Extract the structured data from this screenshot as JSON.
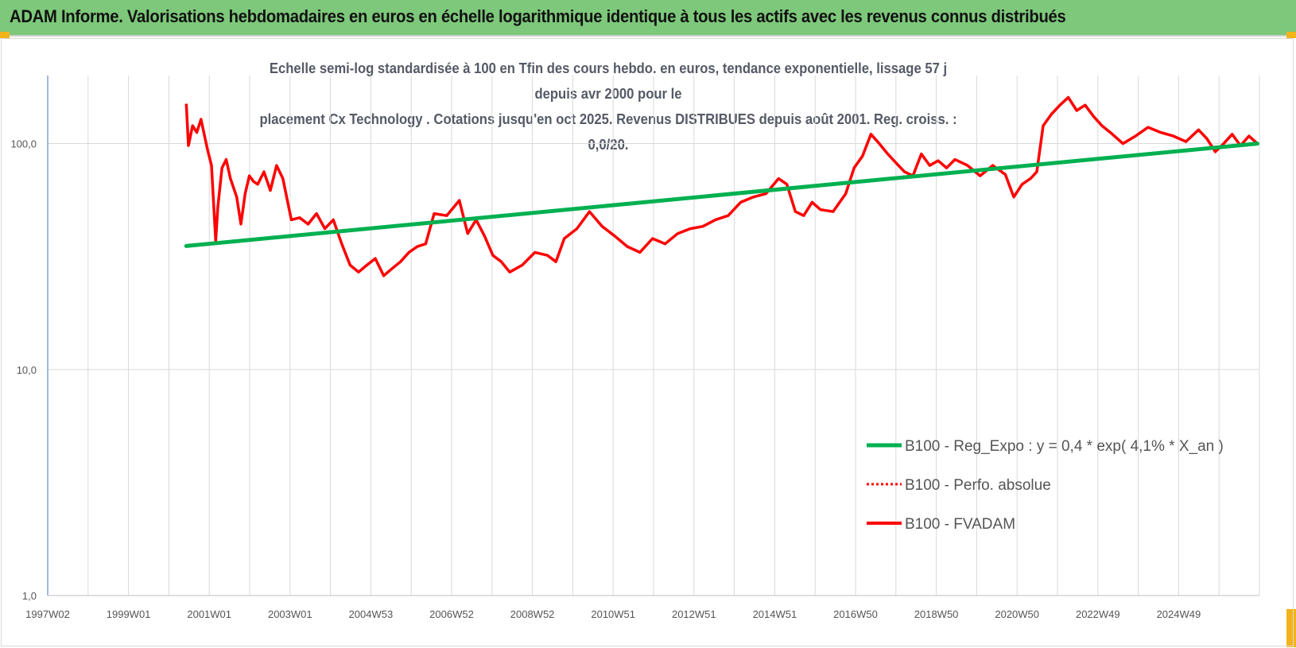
{
  "header": {
    "title": "ADAM Informe. Valorisations hebdomadaires en euros en échelle logarithmique identique à tous les actifs avec les revenus connus distribués"
  },
  "chart_data": {
    "type": "line",
    "title_line1": "Echelle semi-log standardisée à 100 en Tfin des cours hebdo. en euros, tendance exponentielle, lissage 57 j depuis avr 2000 pour le",
    "title_line2": "placement Cx Technology . Cotations jusqu'en oct 2025. Revenus DISTRIBUES depuis août 2001. Reg. croiss. : 0,0/20.",
    "y_scale": "log",
    "ylim": [
      1,
      200
    ],
    "y_ticks": [
      1,
      10,
      100
    ],
    "y_tick_labels": [
      "1,0",
      "10,0",
      "100,0"
    ],
    "x_tick_labels": [
      "1997W02",
      "1999W01",
      "2001W01",
      "2003W01",
      "2004W53",
      "2006W52",
      "2008W52",
      "2010W51",
      "2012W51",
      "2014W51",
      "2016W50",
      "2018W50",
      "2020W50",
      "2022W49",
      "2024W49"
    ],
    "xlim": [
      1997.0,
      2025.85
    ],
    "grid": true,
    "legend_position": "bottom-right",
    "colors": {
      "trend": "#00b050",
      "series": "#ff0000",
      "grid": "#d9d9d9",
      "axis": "#4472c4"
    },
    "series": [
      {
        "name": "B100 - Reg_Expo : y = 0,4 * exp( 4,1% *  X_an )",
        "style": "solid-green",
        "x": [
          2000.3,
          2025.8
        ],
        "y": [
          35.2,
          100
        ]
      },
      {
        "name": "B100 - Perfo. absolue",
        "style": "dotted-red",
        "x": [],
        "y": []
      },
      {
        "name": "B100 - FVADAM",
        "style": "solid-red",
        "x": [
          2000.3,
          2000.35,
          2000.45,
          2000.55,
          2000.65,
          2000.8,
          2000.9,
          2001.0,
          2001.05,
          2001.15,
          2001.25,
          2001.35,
          2001.5,
          2001.6,
          2001.7,
          2001.8,
          2001.9,
          2002.0,
          2002.15,
          2002.3,
          2002.45,
          2002.6,
          2002.8,
          2003.0,
          2003.2,
          2003.4,
          2003.6,
          2003.8,
          2004.0,
          2004.2,
          2004.4,
          2004.6,
          2004.8,
          2005.0,
          2005.2,
          2005.4,
          2005.6,
          2005.8,
          2006.0,
          2006.2,
          2006.5,
          2006.8,
          2007.0,
          2007.2,
          2007.4,
          2007.6,
          2007.8,
          2008.0,
          2008.3,
          2008.6,
          2008.9,
          2009.1,
          2009.3,
          2009.6,
          2009.9,
          2010.2,
          2010.5,
          2010.8,
          2011.1,
          2011.4,
          2011.7,
          2012.0,
          2012.3,
          2012.6,
          2012.9,
          2013.2,
          2013.5,
          2013.8,
          2014.1,
          2014.4,
          2014.6,
          2014.8,
          2015.0,
          2015.2,
          2015.4,
          2015.7,
          2016.0,
          2016.2,
          2016.4,
          2016.6,
          2016.8,
          2017.0,
          2017.2,
          2017.4,
          2017.6,
          2017.8,
          2018.0,
          2018.2,
          2018.4,
          2018.6,
          2018.9,
          2019.2,
          2019.5,
          2019.8,
          2020.0,
          2020.2,
          2020.4,
          2020.55,
          2020.7,
          2020.9,
          2021.1,
          2021.3,
          2021.5,
          2021.7,
          2021.9,
          2022.1,
          2022.3,
          2022.6,
          2022.9,
          2023.2,
          2023.5,
          2023.8,
          2024.1,
          2024.4,
          2024.6,
          2024.8,
          2025.0,
          2025.2,
          2025.4,
          2025.6,
          2025.8
        ],
        "y": [
          150,
          98,
          120,
          112,
          128,
          95,
          80,
          37,
          52,
          78,
          85,
          70,
          58,
          44,
          60,
          72,
          68,
          66,
          75,
          62,
          80,
          70,
          46,
          47,
          44,
          49,
          42,
          46,
          36,
          29,
          27,
          29,
          31,
          26,
          28,
          30,
          33,
          35,
          36,
          49,
          48,
          56,
          40,
          46,
          39,
          32,
          30,
          27,
          29,
          33,
          32,
          30,
          38,
          42,
          50,
          43,
          39,
          35,
          33,
          38,
          36,
          40,
          42,
          43,
          46,
          48,
          55,
          58,
          60,
          70,
          66,
          50,
          48,
          55,
          51,
          50,
          60,
          78,
          88,
          110,
          100,
          90,
          82,
          75,
          72,
          90,
          80,
          84,
          78,
          85,
          80,
          72,
          80,
          73,
          58,
          66,
          70,
          75,
          120,
          135,
          148,
          160,
          140,
          148,
          132,
          120,
          112,
          100,
          108,
          118,
          112,
          108,
          102,
          115,
          105,
          92,
          100,
          110,
          98,
          108,
          100
        ]
      }
    ]
  }
}
